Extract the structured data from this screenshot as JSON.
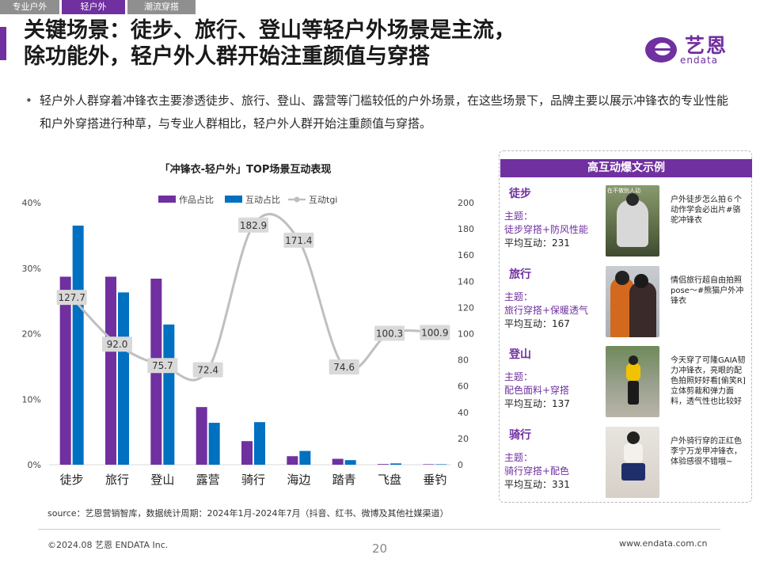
{
  "tabs": [
    "专业户外",
    "轻户外",
    "潮流穿搭"
  ],
  "title_line1": "关键场景：徒步、旅行、登山等轻户外场景是主流，",
  "title_line2": "除功能外，轻户外人群开始注重颜值与穿搭",
  "logo": {
    "cn": "艺恩",
    "en": "endata"
  },
  "bullet": "轻户外人群穿着冲锋衣主要渗透徒步、旅行、登山、露营等门槛较低的户外场景，在这些场景下，品牌主要以展示冲锋衣的专业性能和户外穿搭进行种草，与专业人群相比，轻户外人群开始注重颜值与穿搭。",
  "chart_data": {
    "type": "bar",
    "title": "「冲锋衣-轻户外」TOP场景互动表现",
    "categories": [
      "徒步",
      "旅行",
      "登山",
      "露营",
      "骑行",
      "海边",
      "踏青",
      "飞盘",
      "垂钓"
    ],
    "series": [
      {
        "name": "作品占比",
        "type": "bar",
        "axis": "left",
        "color": "#7030a0",
        "values": [
          28.7,
          28.7,
          28.4,
          8.8,
          3.6,
          1.3,
          0.9,
          0.1,
          0.05
        ]
      },
      {
        "name": "互动占比",
        "type": "bar",
        "axis": "left",
        "color": "#0070c0",
        "values": [
          36.5,
          26.3,
          21.4,
          6.4,
          6.5,
          2.1,
          0.7,
          0.2,
          0.05
        ]
      },
      {
        "name": "互动tgi",
        "type": "line",
        "axis": "right",
        "color": "#bfbfbf",
        "values": [
          127.7,
          92.0,
          75.7,
          72.4,
          182.9,
          171.4,
          74.6,
          100.3,
          100.9
        ]
      }
    ],
    "y_left": {
      "min": 0,
      "max": 40,
      "ticks": [
        "0%",
        "10%",
        "20%",
        "30%",
        "40%"
      ]
    },
    "y_right": {
      "min": 0,
      "max": 200,
      "ticks": [
        "0",
        "20",
        "40",
        "60",
        "80",
        "100",
        "120",
        "140",
        "160",
        "180",
        "200"
      ]
    },
    "legend": "top",
    "grid": false
  },
  "panel": {
    "title": "高互动爆文示例",
    "cases": [
      {
        "name": "徒步",
        "topic_label": "主题：",
        "topic": "徒步穿搭+防风性能",
        "avg": "平均互动：231",
        "caption": "户外徒步怎么拍６个动作学会必出片#骆驼冲锋衣",
        "img_overlay": "在不做别人动"
      },
      {
        "name": "旅行",
        "topic_label": "主题：",
        "topic": "旅行穿搭+保暖透气",
        "avg": "平均互动：167",
        "caption": "情侣旅行超自由拍照pose～#熊猫户外冲锋衣",
        "img_overlay": ""
      },
      {
        "name": "登山",
        "topic_label": "主题：",
        "topic": "配色面料+穿搭",
        "avg": "平均互动：137",
        "caption": "今天穿了可隆GAIA韧力冲锋衣，亮眼的配色拍照好好看[偷笑R] 立体剪裁和弹力面料，透气性也比较好",
        "img_overlay": ""
      },
      {
        "name": "骑行",
        "topic_label": "主题：",
        "topic": "骑行穿搭+配色",
        "avg": "平均互动：331",
        "caption": "户外骑行穿的正红色李宁万龙甲冲锋衣，体验感很不错哦~",
        "img_overlay": ""
      }
    ]
  },
  "source": "source：艺恩营销智库，数据统计周期：2024年1月-2024年7月（抖音、红书、微博及其他社媒渠道）",
  "footer": {
    "left": "©2024.08 艺恩 ENDATA Inc.",
    "page": "20",
    "right": "www.endata.com.cn"
  }
}
